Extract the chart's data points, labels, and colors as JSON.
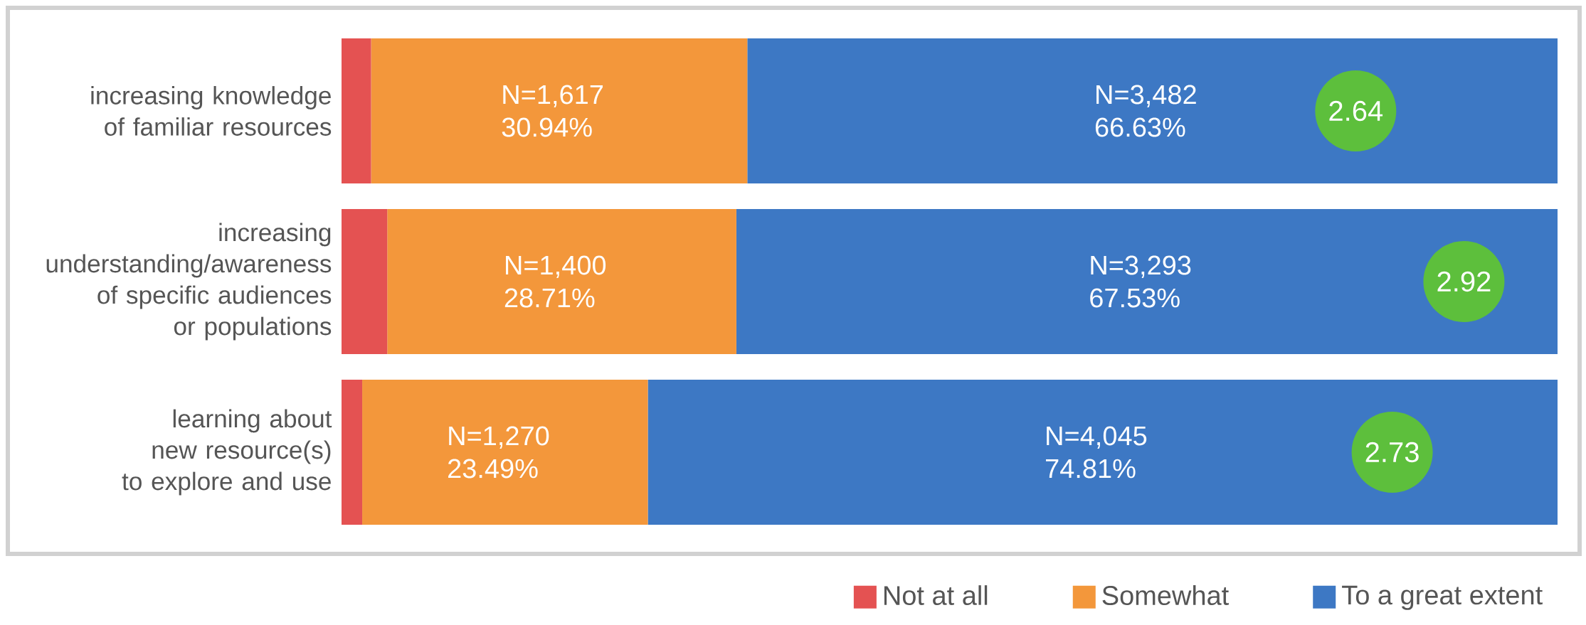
{
  "chart_data": {
    "type": "bar",
    "orientation": "horizontal",
    "stacked": true,
    "tick_labels": "y",
    "legend": "bottom right",
    "categories": [
      "increasing knowledge of familiar resources",
      "increasing understanding/awareness of specific audiences or populations",
      "learning about new resource(s) to explore and use"
    ],
    "xlim": [
      0,
      100
    ],
    "series": [
      {
        "name": "Not at all",
        "color": "#e45252",
        "values": [
          2.43,
          3.76,
          1.7
        ]
      },
      {
        "name": "Somewhat",
        "color": "#f3973b",
        "values": [
          30.94,
          28.71,
          23.49
        ],
        "value_labels": [
          "N=1,617 30.94%",
          "N=1,400 28.71%",
          "N=1,270 23.49%"
        ]
      },
      {
        "name": "To a great extent",
        "color": "#3d78c4",
        "values": [
          66.63,
          67.53,
          74.81
        ],
        "value_labels": [
          "N=3,482 66.63%",
          "N=3,293 67.53%",
          "N=4,045 74.81%"
        ]
      }
    ],
    "annotations": [
      {
        "text": "2.64",
        "x": 83.4,
        "y": "increasing knowledge of familiar resources"
      },
      {
        "text": "2.92",
        "x": 92.3,
        "y": "increasing understanding/awareness of specific audiences or populations"
      },
      {
        "text": "2.73",
        "x": 86.4,
        "y": "learning about new resource(s) to explore and use"
      }
    ]
  }
}
